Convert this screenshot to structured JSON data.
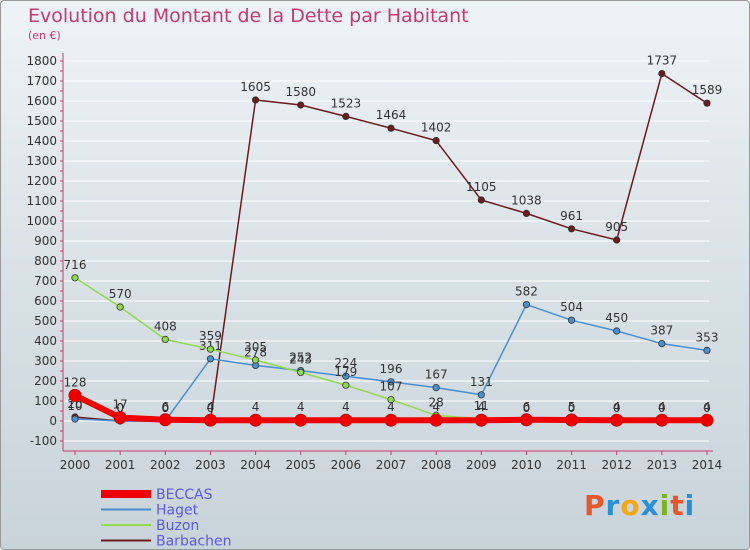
{
  "title": "Evolution du Montant de la Dette par Habitant",
  "subtitle": "(en €)",
  "logo": {
    "text": "Proxiti",
    "colors": [
      "#e8562a",
      "#2a8fd6",
      "#f2a818",
      "#2a8fd6",
      "#7ab51d",
      "#e8562a",
      "#2a8fd6"
    ]
  },
  "chart_data": {
    "type": "line",
    "x": [
      "2000",
      "2001",
      "2002",
      "2003",
      "2004",
      "2005",
      "2006",
      "2007",
      "2008",
      "2009",
      "2010",
      "2011",
      "2012",
      "2013",
      "2014"
    ],
    "ylim": [
      -100,
      1800
    ],
    "yticks": [
      -100,
      0,
      100,
      200,
      300,
      400,
      500,
      600,
      700,
      800,
      900,
      1000,
      1100,
      1200,
      1300,
      1400,
      1500,
      1600,
      1700,
      1800
    ],
    "legend_position": "bottom-left",
    "series": [
      {
        "name": "Barbachen",
        "color": "#6b1a1e",
        "values": [
          20,
          0,
          0,
          0,
          1605,
          1580,
          1523,
          1464,
          1402,
          1105,
          1038,
          961,
          905,
          1737,
          1589
        ],
        "labels": [
          "20",
          "0",
          "0",
          "0",
          "1605",
          "1580",
          "1523",
          "1464",
          "1402",
          "1105",
          "1038",
          "961",
          "905",
          "1737",
          "1589"
        ]
      },
      {
        "name": "Haget",
        "color": "#4a8fcf",
        "values": [
          10,
          0,
          0,
          311,
          278,
          252,
          224,
          196,
          167,
          131,
          582,
          504,
          450,
          387,
          353
        ],
        "labels": [
          "10",
          "0",
          "0",
          "311",
          "278",
          "252",
          "224",
          "196",
          "167",
          "131",
          "582",
          "504",
          "450",
          "387",
          "353"
        ]
      },
      {
        "name": "Buzon",
        "color": "#8fd94a",
        "values": [
          716,
          570,
          408,
          359,
          305,
          243,
          179,
          107,
          28,
          11,
          0,
          0,
          0,
          0,
          0
        ],
        "labels": [
          "716",
          "570",
          "408",
          "359",
          "305",
          "243",
          "179",
          "107",
          "28",
          "11",
          "0",
          "0",
          "0",
          "0",
          "0"
        ]
      },
      {
        "name": "BECCAS",
        "color": "#ee0000",
        "values": [
          128,
          17,
          6,
          4,
          4,
          4,
          4,
          4,
          4,
          4,
          6,
          5,
          4,
          4,
          4
        ],
        "labels": [
          "128",
          "17",
          "6",
          "4",
          "4",
          "4",
          "4",
          "4",
          "4",
          "4",
          "6",
          "5",
          "4",
          "4",
          "4"
        ]
      }
    ],
    "legend_order": [
      "BECCAS",
      "Haget",
      "Buzon",
      "Barbachen"
    ]
  }
}
